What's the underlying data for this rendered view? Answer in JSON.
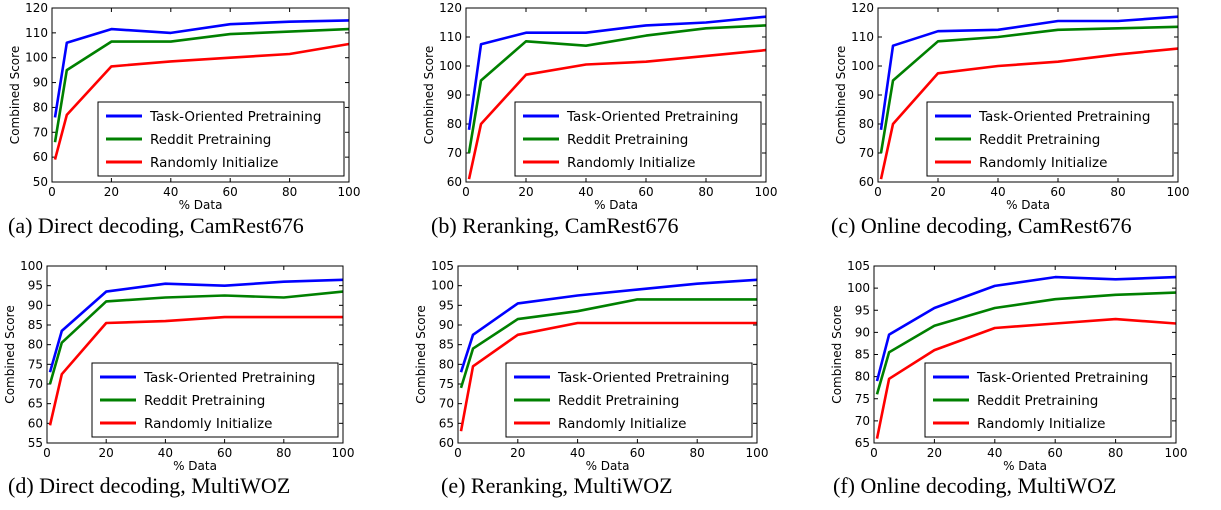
{
  "series_colors": [
    "#0000ff",
    "#008000",
    "#ff0000"
  ],
  "chart_data": [
    {
      "type": "line",
      "caption": "(a) Direct decoding, CamRest676",
      "xlabel": "% Data",
      "ylabel": "Combined Score",
      "xlim": [
        0,
        100
      ],
      "ylim": [
        50,
        120
      ],
      "xticks": [
        "0",
        "20",
        "40",
        "60",
        "80",
        "100"
      ],
      "yticks": [
        "50",
        "60",
        "70",
        "80",
        "90",
        "100",
        "110",
        "120"
      ],
      "legend_position": "lower-right",
      "x": [
        1,
        5,
        20,
        40,
        60,
        80,
        100
      ],
      "series": [
        {
          "name": "Task-Oriented Pretraining",
          "values": [
            76,
            106,
            111.5,
            110,
            113.5,
            114.5,
            115
          ]
        },
        {
          "name": "Reddit Pretraining",
          "values": [
            66,
            95,
            106.5,
            106.5,
            109.5,
            110.5,
            111.5
          ]
        },
        {
          "name": "Randomly Initialize",
          "values": [
            59,
            77,
            96.5,
            98.5,
            100,
            101.5,
            105.5
          ]
        }
      ]
    },
    {
      "type": "line",
      "caption": "(b) Reranking, CamRest676",
      "xlabel": "% Data",
      "ylabel": "Combined Score",
      "xlim": [
        0,
        100
      ],
      "ylim": [
        60,
        120
      ],
      "xticks": [
        "0",
        "20",
        "40",
        "60",
        "80",
        "100"
      ],
      "yticks": [
        "60",
        "70",
        "80",
        "90",
        "100",
        "110",
        "120"
      ],
      "legend_position": "lower-right",
      "x": [
        1,
        5,
        20,
        40,
        60,
        80,
        100
      ],
      "series": [
        {
          "name": "Task-Oriented Pretraining",
          "values": [
            78,
            107.5,
            111.5,
            111.5,
            114,
            115,
            117
          ]
        },
        {
          "name": "Reddit Pretraining",
          "values": [
            70,
            95,
            108.5,
            107,
            110.5,
            113,
            114
          ]
        },
        {
          "name": "Randomly Initialize",
          "values": [
            61,
            80,
            97,
            100.5,
            101.5,
            103.5,
            105.5
          ]
        }
      ]
    },
    {
      "type": "line",
      "caption": "(c) Online decoding, CamRest676",
      "xlabel": "% Data",
      "ylabel": "Combined Score",
      "xlim": [
        0,
        100
      ],
      "ylim": [
        60,
        120
      ],
      "xticks": [
        "0",
        "20",
        "40",
        "60",
        "80",
        "100"
      ],
      "yticks": [
        "60",
        "70",
        "80",
        "90",
        "100",
        "110",
        "120"
      ],
      "legend_position": "lower-right",
      "x": [
        1,
        5,
        20,
        40,
        60,
        80,
        100
      ],
      "series": [
        {
          "name": "Task-Oriented Pretraining",
          "values": [
            78,
            107,
            112,
            112.5,
            115.5,
            115.5,
            117
          ]
        },
        {
          "name": "Reddit Pretraining",
          "values": [
            70,
            95,
            108.5,
            110,
            112.5,
            113,
            113.5
          ]
        },
        {
          "name": "Randomly Initialize",
          "values": [
            61,
            80,
            97.5,
            100,
            101.5,
            104,
            106
          ]
        }
      ]
    },
    {
      "type": "line",
      "caption": "(d) Direct decoding, MultiWOZ",
      "xlabel": "% Data",
      "ylabel": "Combined Score",
      "xlim": [
        0,
        100
      ],
      "ylim": [
        55,
        100
      ],
      "xticks": [
        "0",
        "20",
        "40",
        "60",
        "80",
        "100"
      ],
      "yticks": [
        "55",
        "60",
        "65",
        "70",
        "75",
        "80",
        "85",
        "90",
        "95",
        "100"
      ],
      "legend_position": "lower-right",
      "x": [
        1,
        5,
        20,
        40,
        60,
        80,
        100
      ],
      "series": [
        {
          "name": "Task-Oriented Pretraining",
          "values": [
            73,
            83.5,
            93.5,
            95.5,
            95,
            96,
            96.5
          ]
        },
        {
          "name": "Reddit Pretraining",
          "values": [
            70,
            80.5,
            91,
            92,
            92.5,
            92,
            93.5
          ]
        },
        {
          "name": "Randomly Initialize",
          "values": [
            59.5,
            72.5,
            85.5,
            86,
            87,
            87,
            87
          ]
        }
      ]
    },
    {
      "type": "line",
      "caption": "(e) Reranking, MultiWOZ",
      "xlabel": "% Data",
      "ylabel": "Combined Score",
      "xlim": [
        0,
        100
      ],
      "ylim": [
        60,
        105
      ],
      "xticks": [
        "0",
        "20",
        "40",
        "60",
        "80",
        "100"
      ],
      "yticks": [
        "60",
        "65",
        "70",
        "75",
        "80",
        "85",
        "90",
        "95",
        "100",
        "105"
      ],
      "legend_position": "lower-right",
      "x": [
        1,
        5,
        20,
        40,
        60,
        80,
        100
      ],
      "series": [
        {
          "name": "Task-Oriented Pretraining",
          "values": [
            78,
            87.5,
            95.5,
            97.5,
            99,
            100.5,
            101.5
          ]
        },
        {
          "name": "Reddit Pretraining",
          "values": [
            74,
            84,
            91.5,
            93.5,
            96.5,
            96.5,
            96.5
          ]
        },
        {
          "name": "Randomly Initialize",
          "values": [
            63,
            79.5,
            87.5,
            90.5,
            90.5,
            90.5,
            90.5
          ]
        }
      ]
    },
    {
      "type": "line",
      "caption": "(f) Online decoding, MultiWOZ",
      "xlabel": "% Data",
      "ylabel": "Combined Score",
      "xlim": [
        0,
        100
      ],
      "ylim": [
        65,
        105
      ],
      "xticks": [
        "0",
        "20",
        "40",
        "60",
        "80",
        "100"
      ],
      "yticks": [
        "65",
        "70",
        "75",
        "80",
        "85",
        "90",
        "95",
        "100",
        "105"
      ],
      "legend_position": "lower-right",
      "x": [
        1,
        5,
        20,
        40,
        60,
        80,
        100
      ],
      "series": [
        {
          "name": "Task-Oriented Pretraining",
          "values": [
            79,
            89.5,
            95.5,
            100.5,
            102.5,
            102,
            102.5
          ]
        },
        {
          "name": "Reddit Pretraining",
          "values": [
            76,
            85.5,
            91.5,
            95.5,
            97.5,
            98.5,
            99
          ]
        },
        {
          "name": "Randomly Initialize",
          "values": [
            66,
            79.5,
            86,
            91,
            92,
            93,
            92
          ]
        }
      ]
    }
  ]
}
